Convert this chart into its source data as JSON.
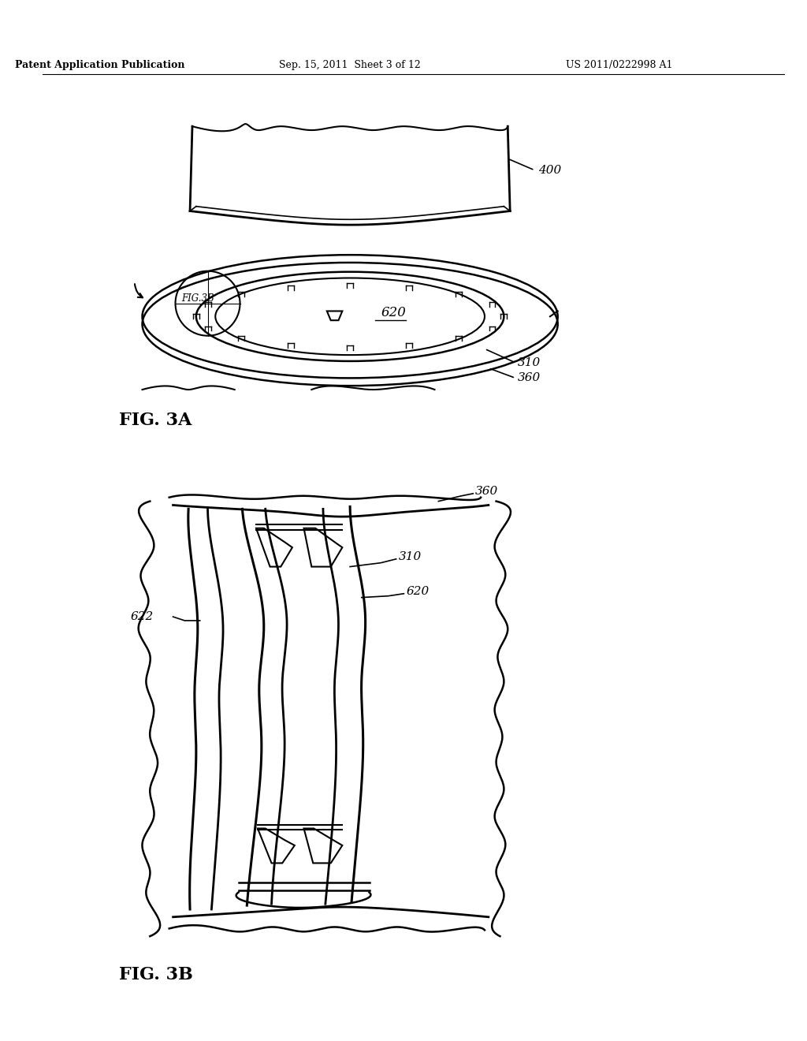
{
  "bg_color": "#ffffff",
  "header_left": "Patent Application Publication",
  "header_mid": "Sep. 15, 2011  Sheet 3 of 12",
  "header_right": "US 2011/0222998 A1",
  "fig3a_label": "FIG. 3A",
  "fig3b_label": "FIG. 3B",
  "label_400": "400",
  "label_620_3a": "620",
  "label_310_3a": "310",
  "label_360_3a": "360",
  "label_fig3b_ref": "FIG.3B",
  "label_360_3b": "360",
  "label_310_3b": "310",
  "label_620_3b": "620",
  "label_622": "622",
  "line_color": "#000000",
  "text_color": "#000000"
}
